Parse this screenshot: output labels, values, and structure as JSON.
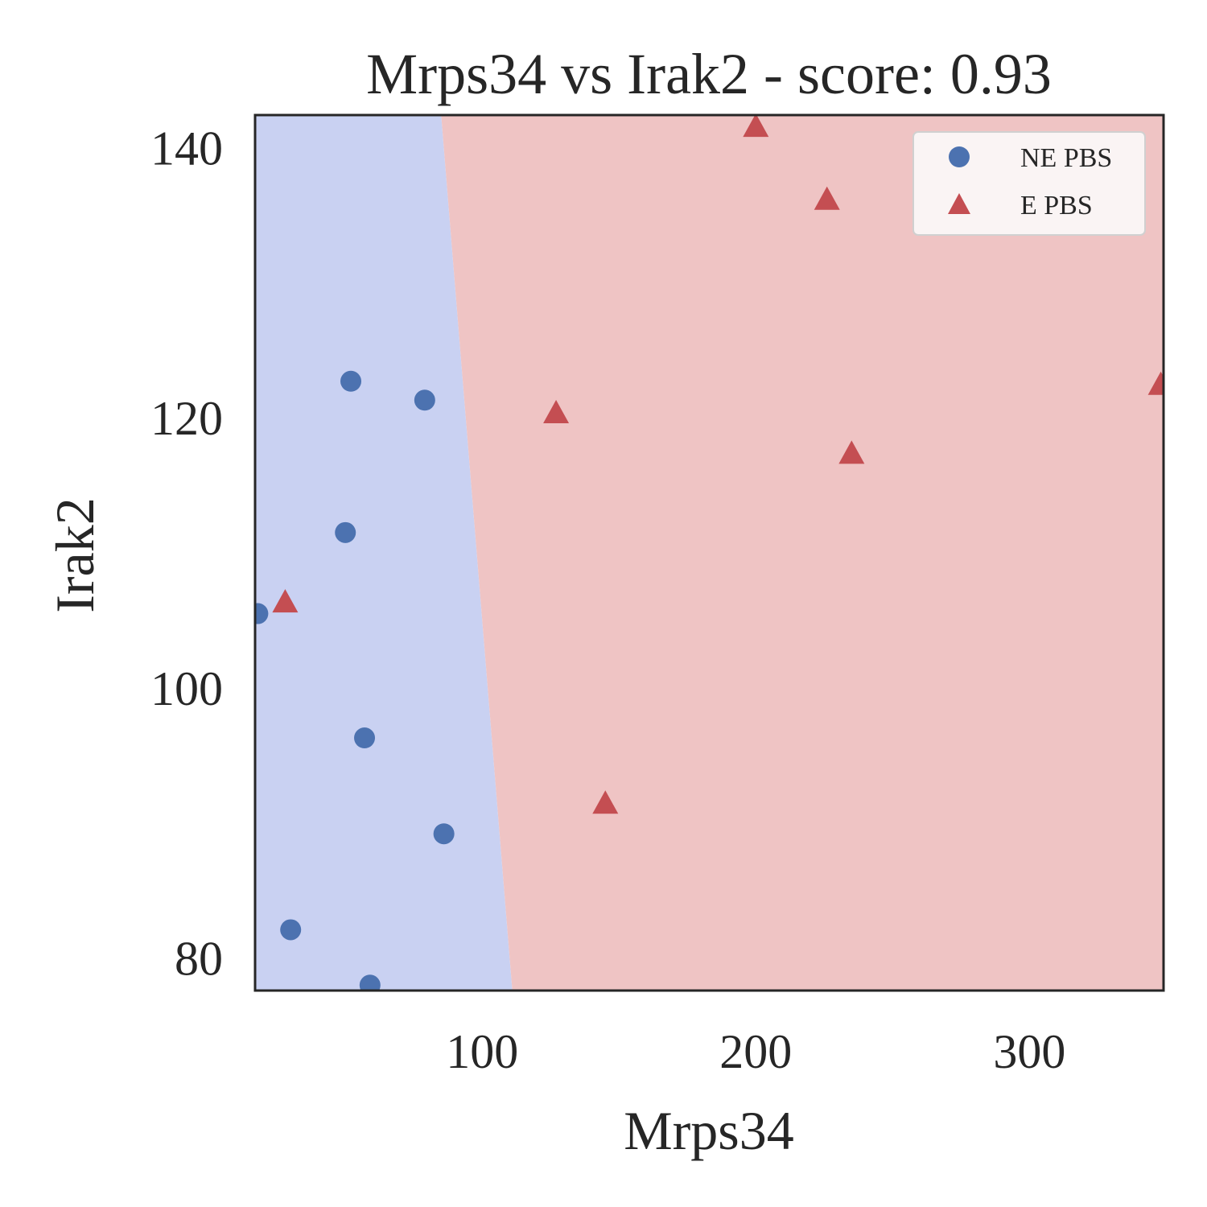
{
  "chart_data": {
    "type": "scatter",
    "title": "Mrps34 vs Irak2 - score: 0.93",
    "xlabel": "Mrps34",
    "ylabel": "Irak2",
    "xlim": [
      17,
      349
    ],
    "ylim": [
      77.6,
      142.4
    ],
    "x_ticks": [
      100,
      200,
      300
    ],
    "y_ticks": [
      80,
      100,
      120,
      140
    ],
    "grid": false,
    "legend_position": "top-right",
    "decision_boundary": {
      "points": [
        [
          85,
          142.4
        ],
        [
          111,
          77.6
        ]
      ],
      "left_region_color": "#c9d1f2",
      "right_region_color": "#efc4c4"
    },
    "series": [
      {
        "name": "NE PBS",
        "marker": "circle",
        "color": "#4c72b0",
        "points": [
          [
            18,
            105.5
          ],
          [
            52,
            122.7
          ],
          [
            79,
            121.3
          ],
          [
            50,
            111.5
          ],
          [
            57,
            96.3
          ],
          [
            86,
            89.2
          ],
          [
            30,
            82.1
          ],
          [
            59,
            78.0
          ]
        ]
      },
      {
        "name": "E PBS",
        "marker": "triangle",
        "color": "#c44e52",
        "points": [
          [
            28,
            106.3
          ],
          [
            127,
            120.3
          ],
          [
            145,
            91.4
          ],
          [
            200,
            141.5
          ],
          [
            226,
            136.1
          ],
          [
            235,
            117.3
          ],
          [
            348,
            122.4
          ]
        ]
      }
    ]
  }
}
